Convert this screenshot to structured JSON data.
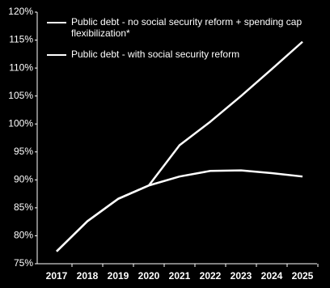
{
  "chart_data": {
    "type": "line",
    "categories": [
      "2017",
      "2018",
      "2019",
      "2020",
      "2021",
      "2022",
      "2023",
      "2024",
      "2025"
    ],
    "series": [
      {
        "name": "Public debt - no social security reform + spending cap flexibilization*",
        "color": "#ffffff",
        "values": [
          77.2,
          82.6,
          86.6,
          89.0,
          96.2,
          100.4,
          105.0,
          109.8,
          114.7
        ]
      },
      {
        "name": "Public debt - with social security reform",
        "color": "#ffffff",
        "values": [
          77.2,
          82.6,
          86.6,
          89.0,
          90.6,
          91.6,
          91.7,
          91.2,
          90.6
        ]
      }
    ],
    "ylim": [
      75,
      120
    ],
    "yticks": [
      {
        "value": 75,
        "label": "75%"
      },
      {
        "value": 80,
        "label": "80%"
      },
      {
        "value": 85,
        "label": "85%"
      },
      {
        "value": 90,
        "label": "90%"
      },
      {
        "value": 95,
        "label": "95%"
      },
      {
        "value": 100,
        "label": "100%"
      },
      {
        "value": 105,
        "label": "105%"
      },
      {
        "value": 110,
        "label": "110%"
      },
      {
        "value": 115,
        "label": "115%"
      },
      {
        "value": 120,
        "label": "120%"
      }
    ],
    "grid": false
  }
}
